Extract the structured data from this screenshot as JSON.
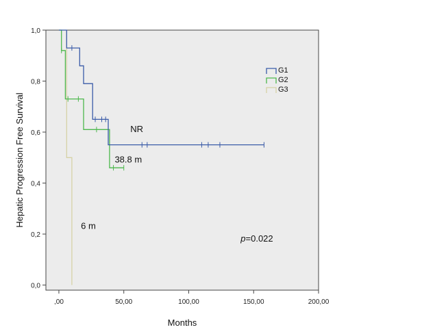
{
  "chart_data": {
    "type": "line",
    "title": "",
    "xlabel": "Months",
    "ylabel": "Hepatic Progression Free Survival",
    "xlim": [
      -10,
      200
    ],
    "ylim": [
      -0.02,
      1.0
    ],
    "x_ticks": [
      0,
      50,
      100,
      150,
      200
    ],
    "x_tick_labels": [
      ",00",
      "50,00",
      "100,00",
      "150,00",
      "200,00"
    ],
    "y_ticks": [
      0.0,
      0.2,
      0.4,
      0.6,
      0.8,
      1.0
    ],
    "y_tick_labels": [
      "0,0",
      "0,2",
      "0,4",
      "0,6",
      "0,8",
      "1,0"
    ],
    "grid": false,
    "legend_position": "top-right",
    "series": [
      {
        "name": "G1",
        "color": "#3a5ba8",
        "steps": [
          [
            0,
            1.0
          ],
          [
            6,
            1.0
          ],
          [
            6,
            0.93
          ],
          [
            16,
            0.93
          ],
          [
            16,
            0.86
          ],
          [
            19,
            0.86
          ],
          [
            19,
            0.79
          ],
          [
            26,
            0.79
          ],
          [
            26,
            0.65
          ],
          [
            38,
            0.65
          ],
          [
            38,
            0.55
          ],
          [
            158,
            0.55
          ]
        ],
        "censored": [
          [
            10,
            0.93
          ],
          [
            28,
            0.65
          ],
          [
            33,
            0.65
          ],
          [
            36,
            0.65
          ],
          [
            64,
            0.55
          ],
          [
            68,
            0.55
          ],
          [
            110,
            0.55
          ],
          [
            115,
            0.55
          ],
          [
            124,
            0.55
          ],
          [
            158,
            0.55
          ]
        ]
      },
      {
        "name": "G2",
        "color": "#4cb84c",
        "steps": [
          [
            0,
            1.0
          ],
          [
            2,
            1.0
          ],
          [
            2,
            0.92
          ],
          [
            5,
            0.92
          ],
          [
            5,
            0.73
          ],
          [
            19,
            0.73
          ],
          [
            19,
            0.61
          ],
          [
            39,
            0.61
          ],
          [
            39,
            0.46
          ],
          [
            50,
            0.46
          ]
        ],
        "censored": [
          [
            2,
            0.92
          ],
          [
            7,
            0.73
          ],
          [
            15,
            0.73
          ],
          [
            29,
            0.61
          ],
          [
            42,
            0.46
          ],
          [
            50,
            0.46
          ]
        ]
      },
      {
        "name": "G3",
        "color": "#d6d2a6",
        "steps": [
          [
            0,
            1.0
          ],
          [
            6,
            1.0
          ],
          [
            6,
            0.5
          ],
          [
            10,
            0.5
          ],
          [
            10,
            0.0
          ]
        ],
        "censored": []
      }
    ],
    "annotations": [
      {
        "text": "NR",
        "x": 55,
        "y": 0.6
      },
      {
        "text": "38.8 m",
        "x": 43,
        "y": 0.48
      },
      {
        "text": "6 m",
        "x": 17,
        "y": 0.22
      }
    ],
    "pvalue": {
      "italic_part": "p",
      "rest": "=0.022",
      "x": 140,
      "y": 0.17
    }
  }
}
